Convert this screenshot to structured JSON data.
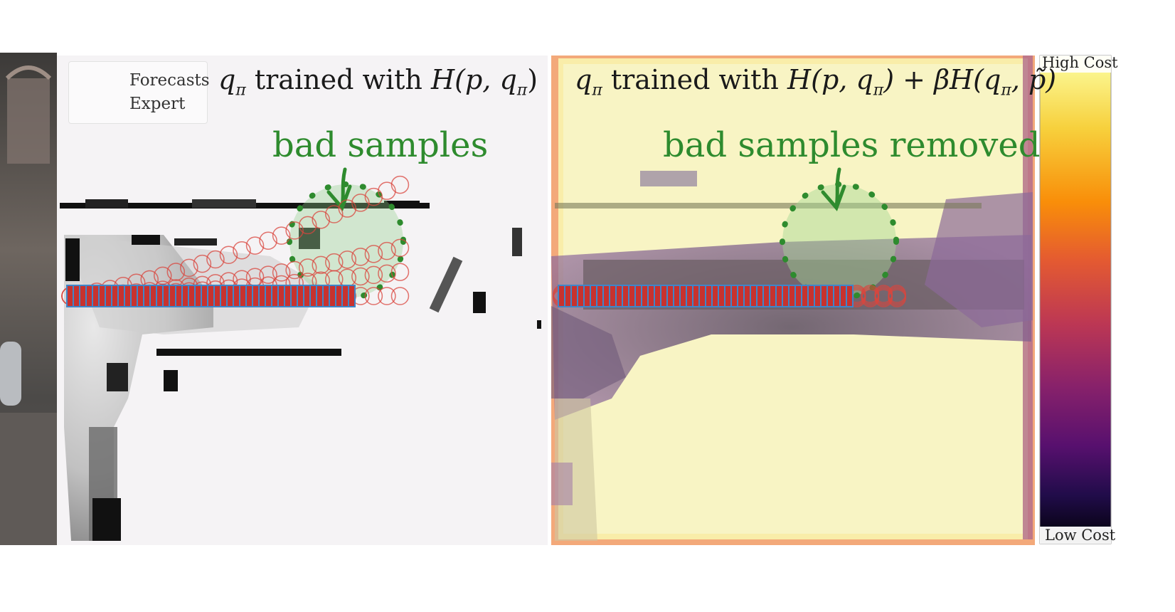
{
  "left_panel": {
    "title_prefix": "q",
    "title_sub": "π",
    "title_main": " trained with ",
    "title_formula": "H(p, q",
    "title_formula_sub": "π",
    "title_formula_end": ")",
    "annotation": "bad samples"
  },
  "right_panel": {
    "title_prefix": "q",
    "title_sub": "π",
    "title_main": " trained with ",
    "title_formula": "H(p, q",
    "title_formula_sub": "π",
    "title_formula_mid": ") + βH(q",
    "title_formula_sub2": "π",
    "title_formula_end": ", p̃)",
    "annotation": "bad samples removed"
  },
  "legend": {
    "items": [
      {
        "label": "Forecasts",
        "marker": "circle-line",
        "color": "#d9453d"
      },
      {
        "label": "Expert",
        "marker": "square",
        "color": "#3f86c9"
      }
    ]
  },
  "colorbar": {
    "top_label": "High Cost",
    "bottom_label": "Low Cost",
    "colors": [
      "#fcffa4",
      "#f7d03c",
      "#f98e09",
      "#e45a31",
      "#bc3754",
      "#87216b",
      "#57106e",
      "#210c4a",
      "#000004"
    ]
  },
  "colors": {
    "forecast": "#d9453d",
    "expert": "#3f86c9",
    "annotation_green": "#2e8b2e"
  }
}
